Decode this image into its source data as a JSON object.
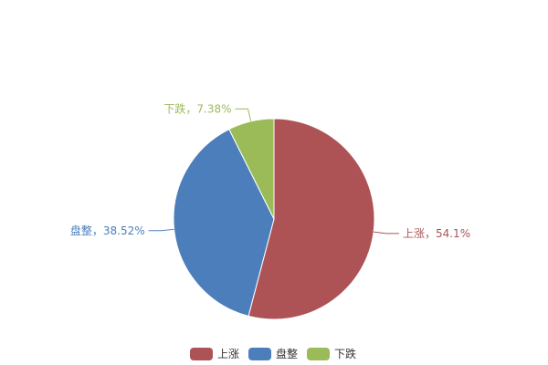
{
  "chart_data": {
    "type": "pie",
    "title": "",
    "categories": [
      "上涨",
      "盘整",
      "下跌"
    ],
    "values": [
      54.1,
      38.52,
      7.38
    ],
    "labels": [
      "上涨，54.1%",
      "盘整，38.52%",
      "下跌，7.38%"
    ],
    "colors": [
      "#ad5356",
      "#4b7ebb",
      "#9bbb59"
    ],
    "start_angle": "top",
    "direction": "clockwise",
    "legend_position": "bottom"
  }
}
